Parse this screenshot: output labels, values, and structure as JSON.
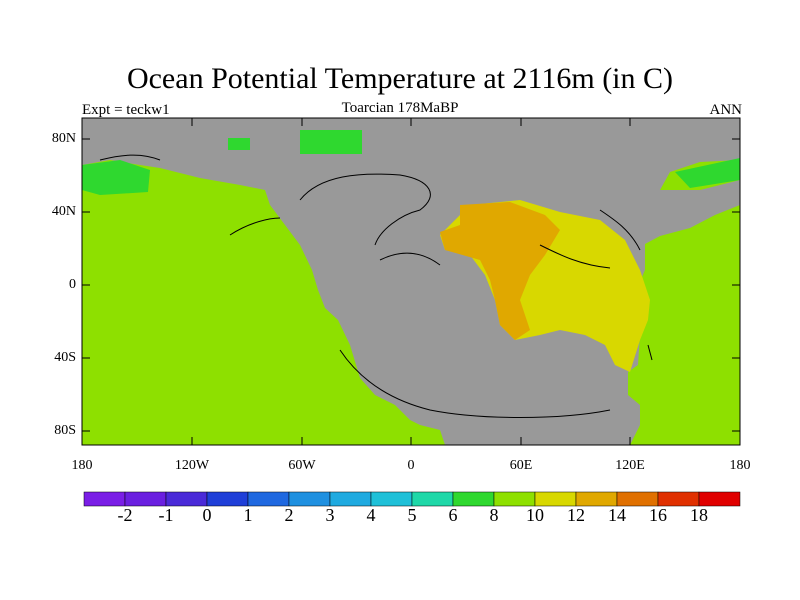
{
  "title": "Ocean Potential Temperature at 2116m (in C)",
  "subtitle_left": "Expt = teckw1",
  "subtitle_center": "Toarcian 178MaBP",
  "subtitle_right": "ANN",
  "y_ticks": [
    "80N",
    "40N",
    "0",
    "40S",
    "80S"
  ],
  "x_ticks": [
    "180",
    "120W",
    "60W",
    "0",
    "60E",
    "120E",
    "180"
  ],
  "colorbar": {
    "labels": [
      "-2",
      "-1",
      "0",
      "1",
      "2",
      "3",
      "4",
      "5",
      "6",
      "8",
      "10",
      "12",
      "14",
      "16",
      "18"
    ],
    "colors": [
      "#7a1ee6",
      "#6a1fe0",
      "#4a2ad8",
      "#1f3fd8",
      "#1f68e0",
      "#1f90e0",
      "#1faae0",
      "#1fc0d8",
      "#1fd8a8",
      "#2fd82f",
      "#8ee000",
      "#d8d800",
      "#e0a800",
      "#e07000",
      "#e03000",
      "#e00000"
    ]
  },
  "map_colors": {
    "land": "#999999",
    "cold_ocean": "#2fd82f",
    "ocean_main": "#8ee000",
    "warm_basin": "#d8d800",
    "hot_core": "#e0a800"
  }
}
